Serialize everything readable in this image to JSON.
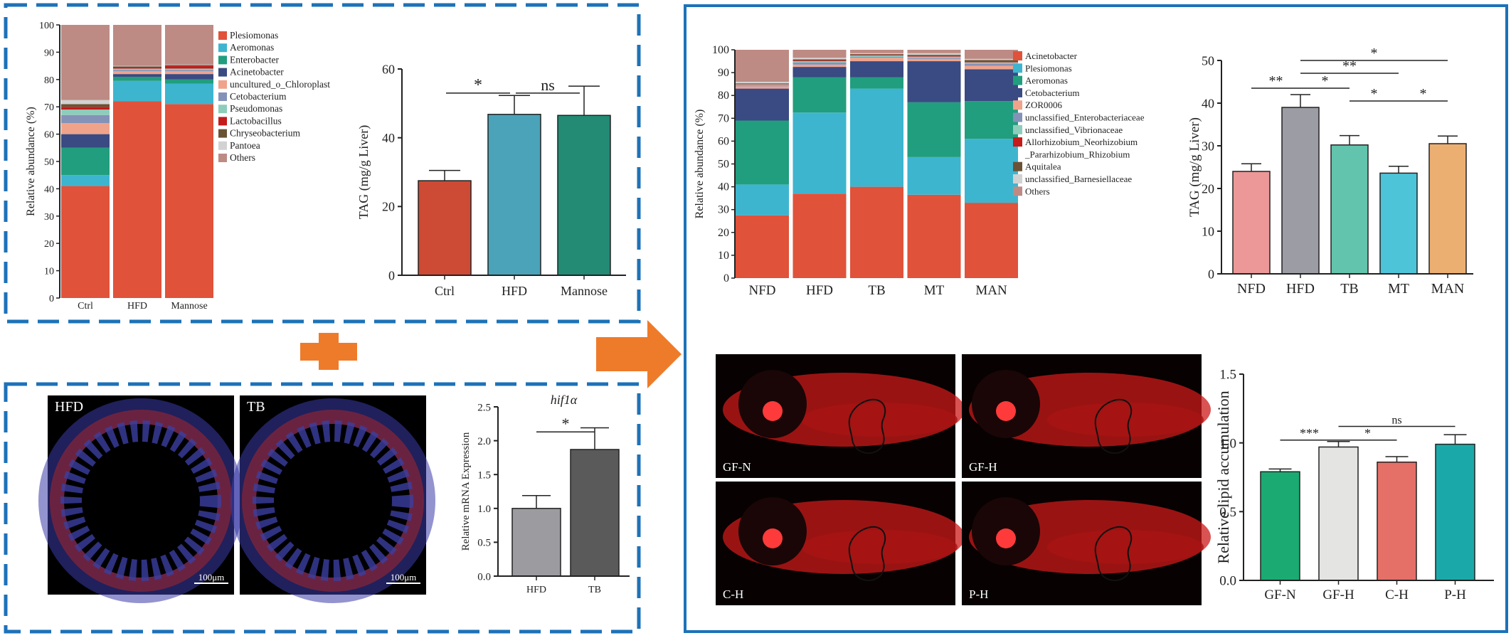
{
  "colors": {
    "frame": "#1d72b8",
    "plus": "#ee7b2a",
    "arrow": "#ee7b2a",
    "background": "#ffffff",
    "fluor_bg": "#070101",
    "fluor_red": "#cc1a1a",
    "fluor_red_bright": "#ff3a3a"
  },
  "panel_a_stack": {
    "type": "stacked-bar",
    "ylabel": "Relative abundance (%)",
    "yticks": [
      "0",
      "10",
      "20",
      "30",
      "40",
      "50",
      "60",
      "70",
      "80",
      "90",
      "100"
    ],
    "ylim": [
      0,
      100
    ],
    "categories": [
      "Ctrl",
      "HFD",
      "Mannose"
    ],
    "series": [
      {
        "name": "Plesiomonas",
        "color": "#e0523a",
        "values": [
          41,
          72,
          71
        ]
      },
      {
        "name": "Aeromonas",
        "color": "#3db5cf",
        "values": [
          4,
          7.5,
          7.5
        ]
      },
      {
        "name": "Enterobacter",
        "color": "#219e7e",
        "values": [
          10,
          1.5,
          1.5
        ]
      },
      {
        "name": "Acinetobacter",
        "color": "#3a4a82",
        "values": [
          5,
          1,
          2
        ]
      },
      {
        "name": "uncultured_o_Chloroplast",
        "color": "#f0a38b",
        "values": [
          4,
          1,
          1
        ]
      },
      {
        "name": "Cetobacterium",
        "color": "#8592b8",
        "values": [
          3,
          0.5,
          0.5
        ]
      },
      {
        "name": "Pseudomonas",
        "color": "#8ecdbb",
        "values": [
          2,
          0.5,
          0.5
        ]
      },
      {
        "name": "Lactobacillus",
        "color": "#c41b1b",
        "values": [
          1,
          0.5,
          1
        ]
      },
      {
        "name": "Chryseobacterium",
        "color": "#6b5234",
        "values": [
          1,
          0.3,
          0.3
        ]
      },
      {
        "name": "Pantoea",
        "color": "#d2d2d2",
        "values": [
          1.5,
          0.2,
          0.2
        ]
      },
      {
        "name": "Others",
        "color": "#bd8b84",
        "values": [
          27.5,
          15,
          14.5
        ]
      }
    ]
  },
  "panel_a_tag": {
    "type": "bar",
    "ylabel": "TAG (mg/g Liver)",
    "yticks": [
      "0",
      "20",
      "40",
      "60"
    ],
    "ylim": [
      0,
      60
    ],
    "categories": [
      "Ctrl",
      "HFD",
      "Mannose"
    ],
    "values": [
      27.5,
      46.8,
      46.5
    ],
    "errors": [
      3,
      5.5,
      8.5
    ],
    "colors": [
      "#cd4a34",
      "#4aa3b8",
      "#238a74"
    ],
    "sig": [
      {
        "from": 0,
        "to": 1,
        "label": "*"
      },
      {
        "from": 1,
        "to": 2,
        "label": "ns"
      }
    ]
  },
  "panel_b_images": [
    {
      "label": "HFD",
      "scale": "100μm"
    },
    {
      "label": "TB",
      "scale": "100μm"
    }
  ],
  "panel_b_hif": {
    "type": "bar",
    "title": "hif1α",
    "ylabel": "Relative mRNA Expression",
    "yticks": [
      "0.0",
      "0.5",
      "1.0",
      "1.5",
      "2.0",
      "2.5"
    ],
    "ylim": [
      0,
      2.5
    ],
    "categories": [
      "HFD",
      "TB"
    ],
    "values": [
      1.0,
      1.87
    ],
    "errors": [
      0.19,
      0.32
    ],
    "colors": [
      "#9c9ca0",
      "#5a5a5a"
    ],
    "sig": [
      {
        "from": 0,
        "to": 1,
        "label": "*"
      }
    ]
  },
  "panel_c_stack": {
    "type": "stacked-bar",
    "ylabel": "Relative  abundance (%)",
    "yticks": [
      "0",
      "10",
      "20",
      "30",
      "40",
      "50",
      "60",
      "70",
      "80",
      "90",
      "100"
    ],
    "ylim": [
      0,
      100
    ],
    "categories": [
      "NFD",
      "HFD",
      "TB",
      "MT",
      "MAN"
    ],
    "series": [
      {
        "name": "Acinetobacter",
        "color": "#e0523a",
        "values": [
          27.5,
          37,
          40,
          36.5,
          33
        ]
      },
      {
        "name": "Plesiomonas",
        "color": "#3db5cf",
        "values": [
          13.5,
          35.5,
          43,
          16.5,
          28
        ]
      },
      {
        "name": "Aeromonas",
        "color": "#219e7e",
        "values": [
          28,
          15.5,
          5,
          24,
          16.5
        ]
      },
      {
        "name": "Cetobacterium",
        "color": "#3a4a82",
        "values": [
          14,
          4.5,
          7,
          18,
          14
        ]
      },
      {
        "name": "ZOR0006",
        "color": "#f0a38b",
        "values": [
          1,
          1,
          1.5,
          1,
          1.5
        ]
      },
      {
        "name": "unclassified_Enterobacteriaceae",
        "color": "#8592b8",
        "values": [
          0.5,
          1,
          0.5,
          0.5,
          1
        ]
      },
      {
        "name": "unclassified_Vibrionaceae",
        "color": "#8ecdbb",
        "values": [
          0.3,
          0.5,
          0.5,
          0.5,
          0.5
        ]
      },
      {
        "name": "Allorhizobium_Neorhizobium_Pararhizobium_Rhizobium",
        "color": "#c41b1b",
        "values": [
          0.2,
          0.3,
          0.3,
          0.3,
          0.5
        ]
      },
      {
        "name": "Aquitalea",
        "color": "#6b5234",
        "values": [
          0.3,
          0.5,
          0.3,
          0.5,
          0.5
        ]
      },
      {
        "name": "unclassified_Barnesiellaceae",
        "color": "#d2d2d2",
        "values": [
          0.7,
          0.7,
          0.4,
          0.7,
          0.5
        ]
      },
      {
        "name": "Others",
        "color": "#bd8b84",
        "values": [
          14,
          3.5,
          1.5,
          1.5,
          4
        ]
      }
    ],
    "legend_display": [
      "Acinetobacter",
      "Plesiomonas",
      "Aeromonas",
      "Cetobacterium",
      "ZOR0006",
      "unclassified_Enterobacteriaceae",
      "unclassified_Vibrionaceae",
      "Allorhizobium_Neorhizobium",
      "_Pararhizobium_Rhizobium",
      "Aquitalea",
      "unclassified_Barnesiellaceae",
      "Others"
    ]
  },
  "panel_c_tag": {
    "type": "bar",
    "ylabel": "TAG (mg/g Liver)",
    "yticks": [
      "0",
      "10",
      "20",
      "30",
      "40",
      "50"
    ],
    "ylim": [
      0,
      50
    ],
    "categories": [
      "NFD",
      "HFD",
      "TB",
      "MT",
      "MAN"
    ],
    "values": [
      24,
      39,
      30.2,
      23.6,
      30.5
    ],
    "errors": [
      1.8,
      3,
      2.2,
      1.6,
      1.8
    ],
    "colors": [
      "#ec9898",
      "#9c9ca4",
      "#62c4ac",
      "#4ec4d8",
      "#ecaf72"
    ],
    "sig": [
      {
        "from": 0,
        "to": 1,
        "label": "**"
      },
      {
        "from": 1,
        "to": 2,
        "label": "*"
      },
      {
        "from": 1,
        "to": 3,
        "label": "**"
      },
      {
        "from": 1,
        "to": 4,
        "label": "*"
      },
      {
        "from": 2,
        "to": 3,
        "label": "*"
      },
      {
        "from": 3,
        "to": 4,
        "label": "*"
      }
    ]
  },
  "panel_d_images": [
    {
      "label": "GF-N"
    },
    {
      "label": "GF-H"
    },
    {
      "label": "C-H"
    },
    {
      "label": "P-H"
    }
  ],
  "panel_d_lipid": {
    "type": "bar",
    "ylabel": "Relative lipid accumulation",
    "yticks": [
      "0.0",
      "0.5",
      "1.0",
      "1.5"
    ],
    "ylim": [
      0,
      1.5
    ],
    "categories": [
      "GF-N",
      "GF-H",
      "C-H",
      "P-H"
    ],
    "values": [
      0.79,
      0.97,
      0.86,
      0.99
    ],
    "errors": [
      0.02,
      0.04,
      0.04,
      0.07
    ],
    "colors": [
      "#1baa72",
      "#e4e4e2",
      "#e47068",
      "#1aa9a8"
    ],
    "sig": [
      {
        "from": 0,
        "to": 1,
        "label": "***"
      },
      {
        "from": 1,
        "to": 2,
        "label": "*"
      },
      {
        "from": 1,
        "to": 3,
        "label": "ns"
      }
    ]
  }
}
